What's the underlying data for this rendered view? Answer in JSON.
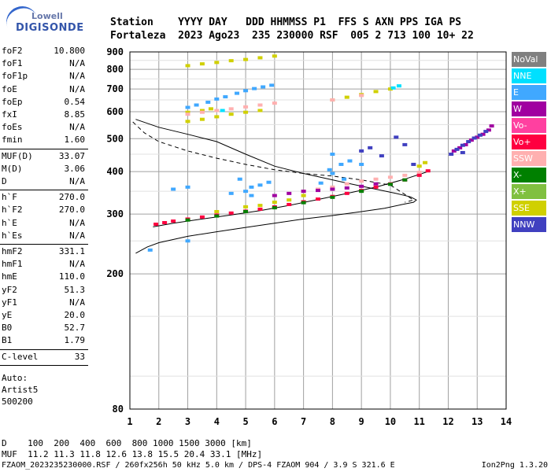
{
  "logo": {
    "line1": "Lowell",
    "line2": "DIGISONDE"
  },
  "header": {
    "line1": "Station    YYYY DAY   DDD HHMMSS P1  FFS S AXN PPS IGA PS",
    "line2": "Fortaleza  2023 Ago23  235 230000 RSF  005 2 713 100 10+ 22"
  },
  "params": {
    "group1": [
      [
        "foF2",
        "10.800"
      ],
      [
        "foF1",
        "N/A"
      ],
      [
        "foF1p",
        "N/A"
      ],
      [
        "foE",
        "N/A"
      ],
      [
        "foEp",
        "0.54"
      ],
      [
        "fxI",
        "8.85"
      ],
      [
        "foEs",
        "N/A"
      ],
      [
        "fmin",
        "1.60"
      ]
    ],
    "group2": [
      [
        "MUF(D)",
        "33.07"
      ],
      [
        "M(D)",
        "3.06"
      ],
      [
        "D",
        "N/A"
      ]
    ],
    "group3": [
      [
        "h`F",
        "270.0"
      ],
      [
        "h`F2",
        "270.0"
      ],
      [
        "h`E",
        "N/A"
      ],
      [
        "h`Es",
        "N/A"
      ]
    ],
    "group4": [
      [
        "hmF2",
        "331.1"
      ],
      [
        "hmF1",
        "N/A"
      ],
      [
        "hmE",
        "110.0"
      ],
      [
        "yF2",
        "51.3"
      ],
      [
        "yF1",
        "N/A"
      ],
      [
        "yE",
        "20.0"
      ],
      [
        "B0",
        "52.7"
      ],
      [
        "B1",
        "1.79"
      ]
    ],
    "group5": [
      [
        "C-level",
        "33"
      ]
    ]
  },
  "auto": {
    "line1": "Auto:",
    "line2": "Artist5",
    "line3": "500200"
  },
  "legend": [
    {
      "label": "NoVal",
      "color": "#808080"
    },
    {
      "label": "NNE",
      "color": "#00e0ff"
    },
    {
      "label": "E",
      "color": "#40a8ff"
    },
    {
      "label": "W",
      "color": "#a000a0"
    },
    {
      "label": "Vo-",
      "color": "#ff40a0"
    },
    {
      "label": "Vo+",
      "color": "#ff0040"
    },
    {
      "label": "SSW",
      "color": "#ffb0b0"
    },
    {
      "label": "X-",
      "color": "#008000"
    },
    {
      "label": "X+",
      "color": "#80c040"
    },
    {
      "label": "SSE",
      "color": "#d0d000"
    },
    {
      "label": "NNW",
      "color": "#4040c0"
    }
  ],
  "bottom": {
    "line1": "D    100  200  400  600  800 1000 1500 3000 [km]",
    "line2": "MUF  11.2 11.3 11.8 12.6 13.8 15.5 20.4 33.1 [MHz]"
  },
  "footer": {
    "text": "FZAOM_2023235230000.RSF / 260fx256h 50 kHz 5.0 km / DPS-4 FZAOM 904 / 3.9 S 321.6 E",
    "version": "Ion2Png 1.3.20"
  },
  "chart_data": {
    "type": "scatter",
    "xlim": [
      1,
      14
    ],
    "ylim": [
      80,
      900
    ],
    "y_scale": "log",
    "xticks": [
      1,
      2,
      3,
      4,
      5,
      6,
      7,
      8,
      9,
      10,
      11,
      12,
      13,
      14
    ],
    "yticks": [
      80,
      200,
      300,
      400,
      500,
      600,
      700,
      800,
      900
    ],
    "grid": true,
    "series": [
      {
        "name": "E",
        "color": "#40a8ff",
        "points": [
          [
            3.0,
            618
          ],
          [
            3.3,
            628
          ],
          [
            3.7,
            640
          ],
          [
            4.0,
            654
          ],
          [
            4.3,
            664
          ],
          [
            4.7,
            680
          ],
          [
            5.0,
            692
          ],
          [
            5.3,
            702
          ],
          [
            5.6,
            710
          ],
          [
            5.9,
            718
          ],
          [
            2.5,
            355
          ],
          [
            3.0,
            360
          ],
          [
            4.5,
            345
          ],
          [
            5.0,
            350
          ],
          [
            5.2,
            360
          ],
          [
            5.5,
            365
          ],
          [
            5.8,
            372
          ],
          [
            4.8,
            380
          ],
          [
            5.2,
            340
          ],
          [
            7.6,
            370
          ],
          [
            8.0,
            395
          ],
          [
            8.3,
            420
          ],
          [
            8.6,
            430
          ],
          [
            8.0,
            450
          ],
          [
            8.4,
            380
          ],
          [
            7.9,
            405
          ],
          [
            9.0,
            420
          ],
          [
            1.7,
            235
          ],
          [
            3.0,
            250
          ]
        ]
      },
      {
        "name": "SSE",
        "color": "#d0d000",
        "points": [
          [
            3.0,
            820
          ],
          [
            3.5,
            830
          ],
          [
            4.0,
            838
          ],
          [
            4.5,
            848
          ],
          [
            5.0,
            855
          ],
          [
            5.5,
            865
          ],
          [
            6.0,
            875
          ],
          [
            3.0,
            562
          ],
          [
            3.5,
            570
          ],
          [
            4.0,
            580
          ],
          [
            4.5,
            590
          ],
          [
            5.0,
            598
          ],
          [
            5.5,
            605
          ],
          [
            8.0,
            650
          ],
          [
            8.5,
            662
          ],
          [
            9.0,
            674
          ],
          [
            9.5,
            688
          ],
          [
            10.0,
            700
          ],
          [
            3.0,
            598
          ],
          [
            3.5,
            605
          ],
          [
            3.8,
            612
          ],
          [
            4.0,
            305
          ],
          [
            5.0,
            315
          ],
          [
            6.0,
            325
          ],
          [
            7.0,
            340
          ],
          [
            6.5,
            330
          ],
          [
            5.5,
            318
          ],
          [
            11.0,
            415
          ],
          [
            11.2,
            425
          ]
        ]
      },
      {
        "name": "SSW",
        "color": "#ffb0b0",
        "points": [
          [
            3.0,
            590
          ],
          [
            3.5,
            598
          ],
          [
            4.0,
            605
          ],
          [
            4.5,
            612
          ],
          [
            5.0,
            620
          ],
          [
            5.5,
            628
          ],
          [
            6.0,
            636
          ],
          [
            7.0,
            350
          ],
          [
            7.5,
            355
          ],
          [
            8.0,
            360
          ],
          [
            8.5,
            368
          ],
          [
            9.0,
            375
          ],
          [
            9.5,
            380
          ],
          [
            10.0,
            385
          ],
          [
            10.5,
            390
          ],
          [
            11.0,
            398
          ],
          [
            8.0,
            650
          ],
          [
            9.0,
            670
          ]
        ]
      },
      {
        "name": "Vo+",
        "color": "#ff0040",
        "points": [
          [
            1.9,
            280
          ],
          [
            2.2,
            283
          ],
          [
            2.5,
            286
          ],
          [
            3.0,
            290
          ],
          [
            3.5,
            294
          ],
          [
            4.0,
            298
          ],
          [
            4.5,
            302
          ],
          [
            5.0,
            306
          ],
          [
            5.5,
            310
          ],
          [
            6.0,
            315
          ],
          [
            6.5,
            320
          ],
          [
            7.0,
            326
          ],
          [
            7.5,
            332
          ],
          [
            8.0,
            338
          ],
          [
            8.5,
            345
          ],
          [
            9.0,
            352
          ],
          [
            9.5,
            360
          ],
          [
            10.0,
            368
          ],
          [
            10.5,
            378
          ],
          [
            11.0,
            390
          ],
          [
            11.3,
            402
          ]
        ]
      },
      {
        "name": "W",
        "color": "#a000a0",
        "points": [
          [
            6.0,
            340
          ],
          [
            6.5,
            345
          ],
          [
            7.0,
            350
          ],
          [
            7.5,
            352
          ],
          [
            8.0,
            355
          ],
          [
            8.5,
            358
          ],
          [
            9.0,
            362
          ],
          [
            9.5,
            368
          ],
          [
            12.2,
            460
          ],
          [
            12.4,
            470
          ],
          [
            12.6,
            480
          ],
          [
            12.8,
            495
          ],
          [
            13.0,
            505
          ],
          [
            13.2,
            515
          ],
          [
            13.4,
            530
          ],
          [
            13.5,
            545
          ]
        ]
      },
      {
        "name": "NNW",
        "color": "#4040c0",
        "points": [
          [
            12.1,
            450
          ],
          [
            12.3,
            465
          ],
          [
            12.5,
            478
          ],
          [
            12.7,
            490
          ],
          [
            12.9,
            502
          ],
          [
            13.1,
            512
          ],
          [
            13.3,
            525
          ],
          [
            9.0,
            460
          ],
          [
            9.3,
            470
          ],
          [
            10.2,
            505
          ],
          [
            10.5,
            480
          ],
          [
            10.8,
            420
          ],
          [
            9.7,
            445
          ],
          [
            12.5,
            455
          ]
        ]
      },
      {
        "name": "X-",
        "color": "#008000",
        "points": [
          [
            3.0,
            288
          ],
          [
            4.0,
            296
          ],
          [
            5.0,
            305
          ],
          [
            6.0,
            313
          ],
          [
            7.0,
            324
          ],
          [
            8.0,
            336
          ],
          [
            9.0,
            350
          ],
          [
            10.0,
            367
          ],
          [
            10.5,
            378
          ]
        ]
      },
      {
        "name": "NNE",
        "color": "#00e0ff",
        "points": [
          [
            10.1,
            705
          ],
          [
            10.3,
            715
          ],
          [
            4.2,
            605
          ]
        ]
      }
    ],
    "lines": [
      {
        "name": "profile",
        "style": "solid",
        "points": [
          [
            1.2,
            230
          ],
          [
            1.6,
            240
          ],
          [
            2.0,
            247
          ],
          [
            3.0,
            258
          ],
          [
            4.0,
            266
          ],
          [
            5.0,
            274
          ],
          [
            6.0,
            282
          ],
          [
            7.0,
            290
          ],
          [
            8.0,
            297
          ],
          [
            9.0,
            305
          ],
          [
            9.8,
            312
          ],
          [
            10.4,
            320
          ],
          [
            10.8,
            325
          ],
          [
            10.9,
            330
          ],
          [
            10.7,
            337
          ],
          [
            10.2,
            345
          ],
          [
            9.5,
            355
          ],
          [
            8.5,
            370
          ],
          [
            7.0,
            395
          ],
          [
            6.0,
            415
          ],
          [
            5.0,
            450
          ],
          [
            4.0,
            490
          ],
          [
            3.0,
            515
          ],
          [
            2.0,
            540
          ],
          [
            1.2,
            570
          ]
        ]
      },
      {
        "name": "trace",
        "style": "dashed",
        "points": [
          [
            1.1,
            560
          ],
          [
            1.5,
            520
          ],
          [
            2.0,
            490
          ],
          [
            3.0,
            460
          ],
          [
            4.0,
            438
          ],
          [
            5.0,
            420
          ],
          [
            6.0,
            405
          ],
          [
            7.0,
            395
          ],
          [
            8.0,
            388
          ],
          [
            9.0,
            378
          ],
          [
            10.0,
            365
          ],
          [
            10.8,
            330
          ],
          [
            10.5,
            325
          ]
        ]
      },
      {
        "name": "fit",
        "style": "solid",
        "points": [
          [
            1.8,
            275
          ],
          [
            2.5,
            282
          ],
          [
            3.5,
            290
          ],
          [
            4.5,
            298
          ],
          [
            5.5,
            307
          ],
          [
            6.5,
            318
          ],
          [
            7.5,
            331
          ],
          [
            8.5,
            345
          ],
          [
            9.5,
            360
          ],
          [
            10.5,
            380
          ],
          [
            11.3,
            400
          ]
        ]
      }
    ]
  }
}
